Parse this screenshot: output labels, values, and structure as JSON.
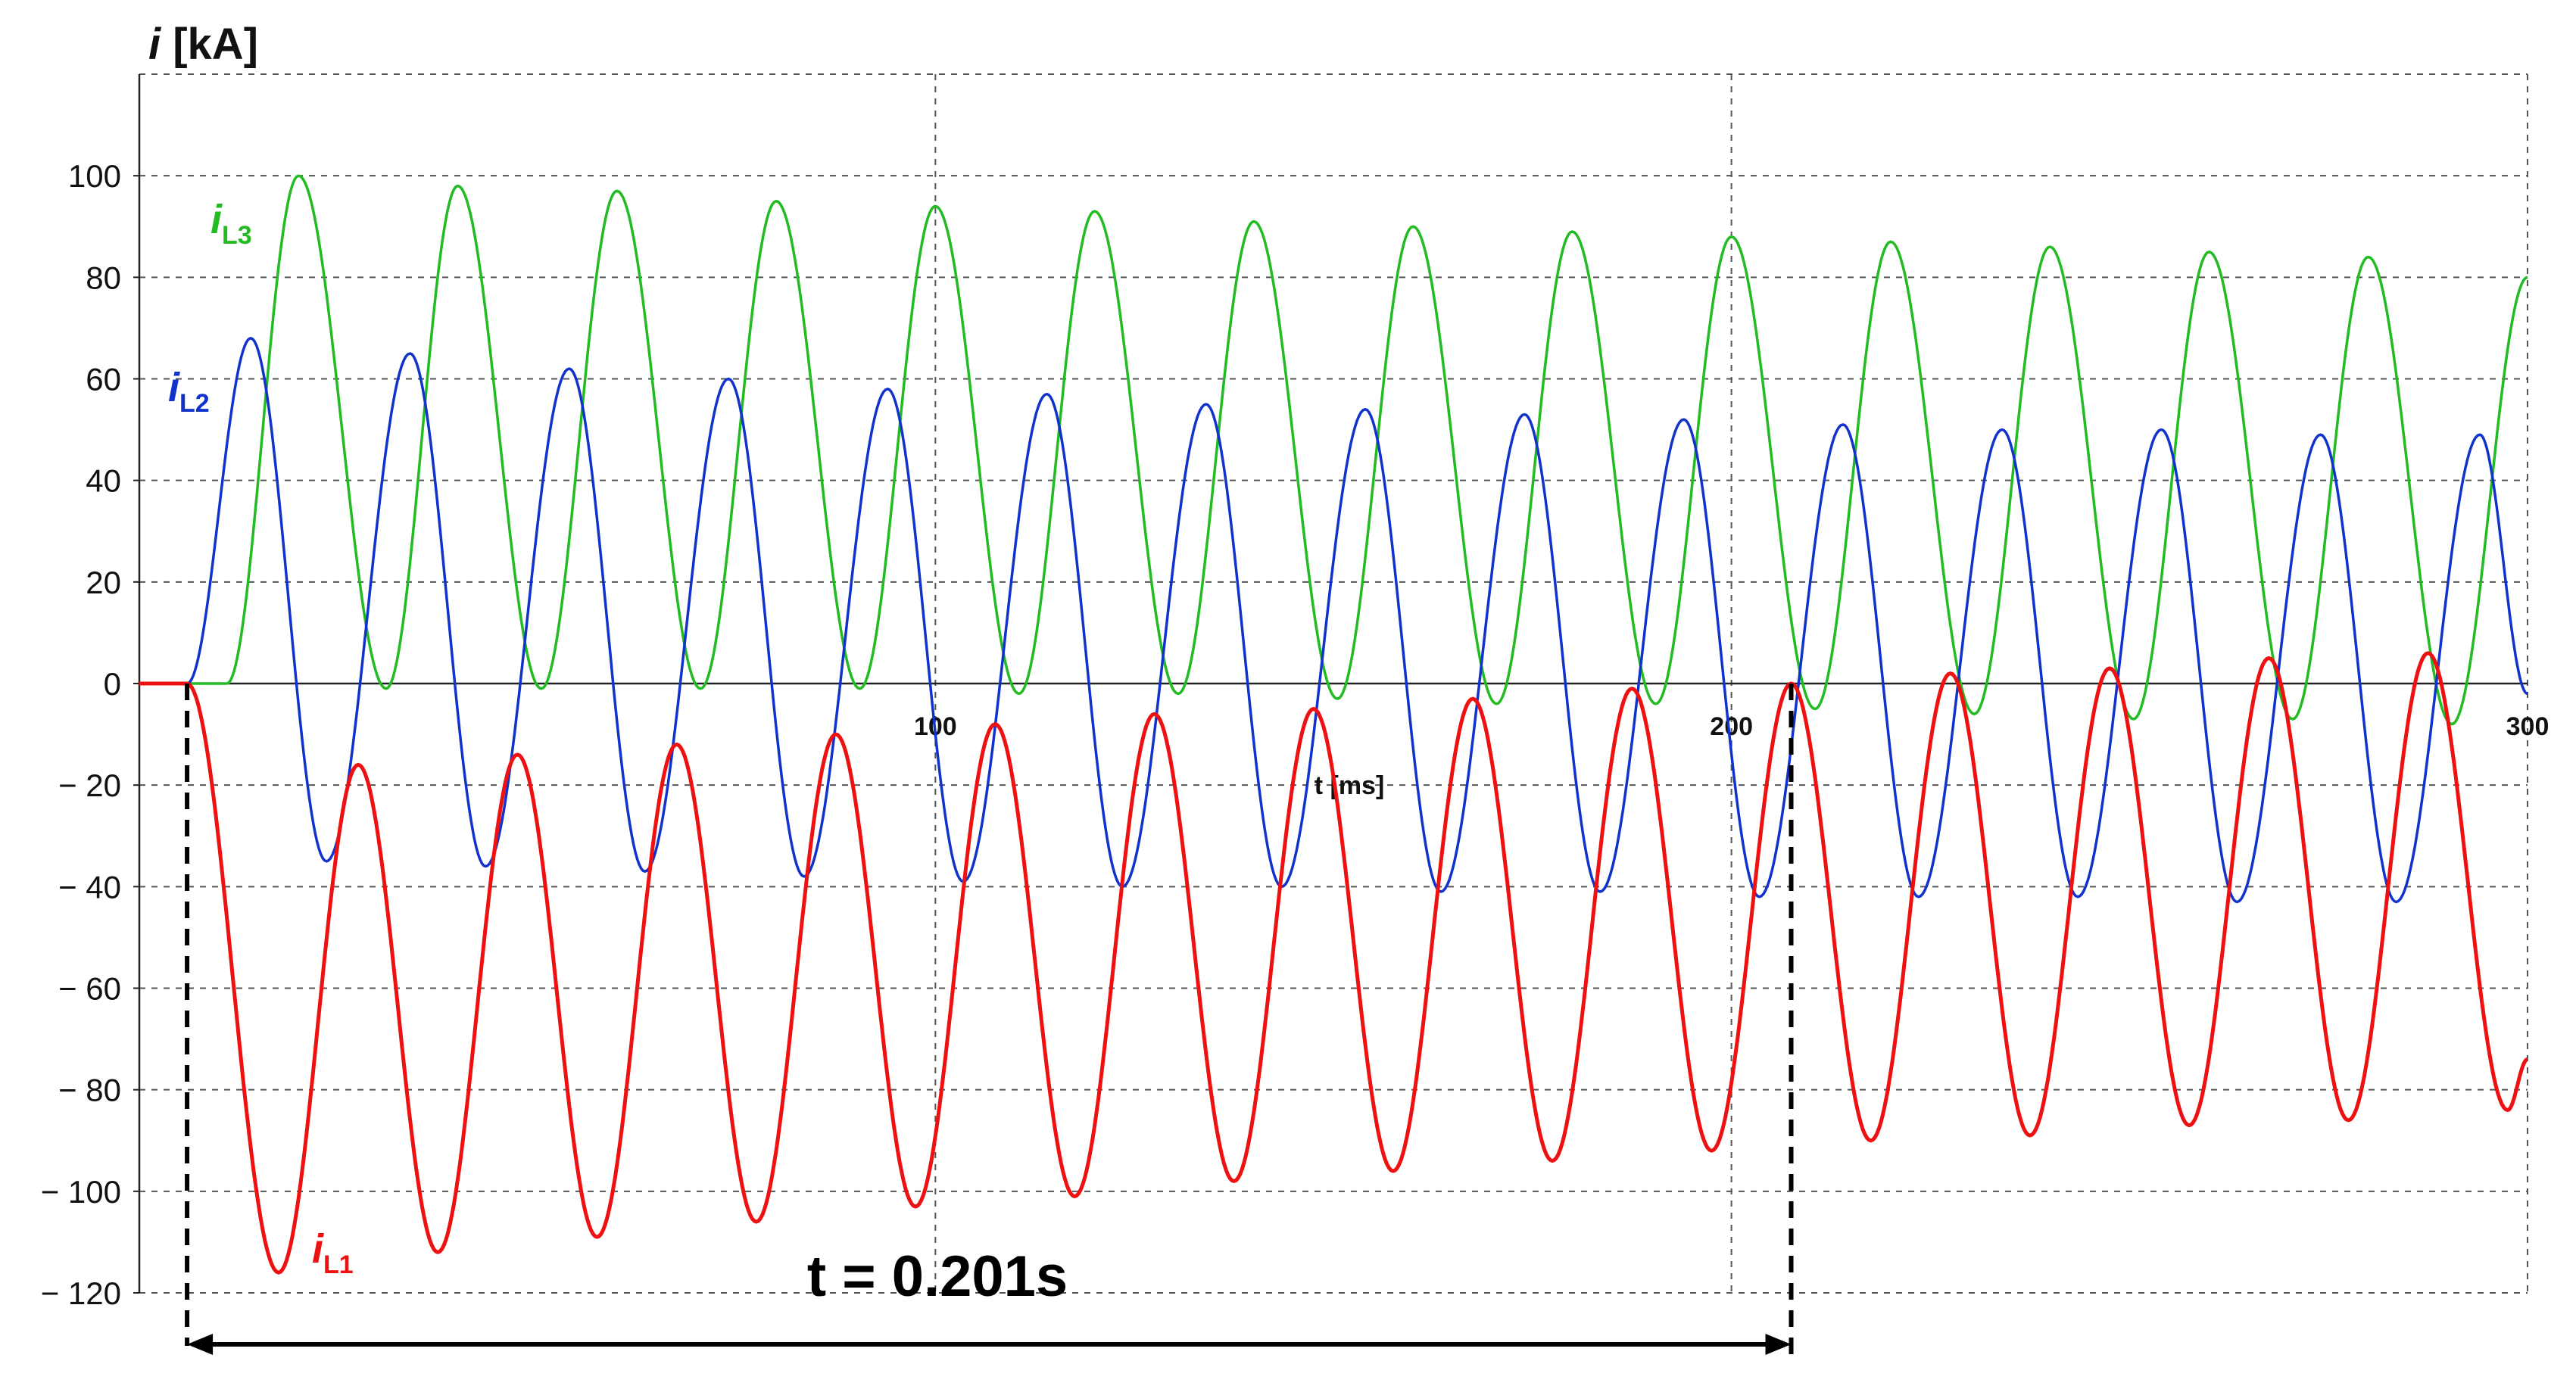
{
  "chart_data": {
    "type": "line",
    "title": "",
    "ylabel_prefix": "i",
    "ylabel_unit": "[kA]",
    "xlabel": "t [ms]",
    "xlim": [
      0,
      300
    ],
    "ylim": [
      -120,
      120
    ],
    "y_ticks": [
      100,
      80,
      60,
      40,
      20,
      0,
      -20,
      -40,
      -60,
      -80,
      -100,
      -120
    ],
    "y_tick_labels": [
      "100",
      "80",
      "60",
      "40",
      "20",
      "0",
      "− 20",
      "− 40",
      "− 60",
      "− 80",
      "− 100",
      "− 120"
    ],
    "x_ticks": [
      100,
      200,
      300
    ],
    "x_tick_labels": [
      "100",
      "200",
      "300"
    ],
    "grid": true,
    "fault_start_ms": 6,
    "frequency_hz": 50,
    "series": [
      {
        "name": "i",
        "sub": "L1",
        "color": "#ee1111",
        "peaks": [
          {
            "t": 17.5,
            "v": -116
          },
          {
            "t": 27.5,
            "v": -16
          },
          {
            "t": 37.5,
            "v": -112
          },
          {
            "t": 47.5,
            "v": -14
          },
          {
            "t": 57.5,
            "v": -109
          },
          {
            "t": 67.5,
            "v": -12
          },
          {
            "t": 77.5,
            "v": -106
          },
          {
            "t": 87.5,
            "v": -10
          },
          {
            "t": 97.5,
            "v": -103
          },
          {
            "t": 107.5,
            "v": -8
          },
          {
            "t": 117.5,
            "v": -101
          },
          {
            "t": 127.5,
            "v": -6
          },
          {
            "t": 137.5,
            "v": -98
          },
          {
            "t": 147.5,
            "v": -5
          },
          {
            "t": 157.5,
            "v": -96
          },
          {
            "t": 167.5,
            "v": -3
          },
          {
            "t": 177.5,
            "v": -94
          },
          {
            "t": 187.5,
            "v": -1
          },
          {
            "t": 197.5,
            "v": -92
          },
          {
            "t": 207.5,
            "v": 0
          },
          {
            "t": 217.5,
            "v": -90
          },
          {
            "t": 227.5,
            "v": 2
          },
          {
            "t": 237.5,
            "v": -89
          },
          {
            "t": 247.5,
            "v": 3
          },
          {
            "t": 257.5,
            "v": -87
          },
          {
            "t": 267.5,
            "v": 5
          },
          {
            "t": 277.5,
            "v": -86
          },
          {
            "t": 287.5,
            "v": 6
          },
          {
            "t": 297.5,
            "v": -84
          }
        ],
        "end_value": -74
      },
      {
        "name": "i",
        "sub": "L2",
        "color": "#1133cc",
        "peaks": [
          {
            "t": 14,
            "v": 68
          },
          {
            "t": 23.5,
            "v": -35
          },
          {
            "t": 34,
            "v": 65
          },
          {
            "t": 43.5,
            "v": -36
          },
          {
            "t": 54,
            "v": 62
          },
          {
            "t": 63.5,
            "v": -37
          },
          {
            "t": 74,
            "v": 60
          },
          {
            "t": 83.5,
            "v": -38
          },
          {
            "t": 94,
            "v": 58
          },
          {
            "t": 103.5,
            "v": -39
          },
          {
            "t": 114,
            "v": 57
          },
          {
            "t": 123.5,
            "v": -40
          },
          {
            "t": 134,
            "v": 55
          },
          {
            "t": 143.5,
            "v": -40
          },
          {
            "t": 154,
            "v": 54
          },
          {
            "t": 163.5,
            "v": -41
          },
          {
            "t": 174,
            "v": 53
          },
          {
            "t": 183.5,
            "v": -41
          },
          {
            "t": 194,
            "v": 52
          },
          {
            "t": 203.5,
            "v": -42
          },
          {
            "t": 214,
            "v": 51
          },
          {
            "t": 223.5,
            "v": -42
          },
          {
            "t": 234,
            "v": 50
          },
          {
            "t": 243.5,
            "v": -42
          },
          {
            "t": 254,
            "v": 50
          },
          {
            "t": 263.5,
            "v": -43
          },
          {
            "t": 274,
            "v": 49
          },
          {
            "t": 283.5,
            "v": -43
          },
          {
            "t": 294,
            "v": 49
          }
        ],
        "end_value": -2
      },
      {
        "name": "i",
        "sub": "L3",
        "color": "#22bb22",
        "peaks": [
          {
            "t": 11,
            "v": 0
          },
          {
            "t": 20,
            "v": 100
          },
          {
            "t": 31,
            "v": -1
          },
          {
            "t": 40,
            "v": 98
          },
          {
            "t": 50.5,
            "v": -1
          },
          {
            "t": 60,
            "v": 97
          },
          {
            "t": 70.5,
            "v": -1
          },
          {
            "t": 80,
            "v": 95
          },
          {
            "t": 90.5,
            "v": -1
          },
          {
            "t": 100,
            "v": 94
          },
          {
            "t": 110.5,
            "v": -2
          },
          {
            "t": 120,
            "v": 93
          },
          {
            "t": 130.5,
            "v": -2
          },
          {
            "t": 140,
            "v": 91
          },
          {
            "t": 150.5,
            "v": -3
          },
          {
            "t": 160,
            "v": 90
          },
          {
            "t": 170.5,
            "v": -4
          },
          {
            "t": 180,
            "v": 89
          },
          {
            "t": 190.5,
            "v": -4
          },
          {
            "t": 200,
            "v": 88
          },
          {
            "t": 210.5,
            "v": -5
          },
          {
            "t": 220,
            "v": 87
          },
          {
            "t": 230.5,
            "v": -6
          },
          {
            "t": 240,
            "v": 86
          },
          {
            "t": 250.5,
            "v": -7
          },
          {
            "t": 260,
            "v": 85
          },
          {
            "t": 270.5,
            "v": -7
          },
          {
            "t": 280,
            "v": 84
          },
          {
            "t": 290.5,
            "v": -8
          },
          {
            "t": 300,
            "v": 80
          }
        ],
        "end_value": 80
      }
    ],
    "annotation": {
      "text": "t = 0.201s",
      "t_start_ms": 6,
      "t_end_ms": 207.5
    }
  }
}
